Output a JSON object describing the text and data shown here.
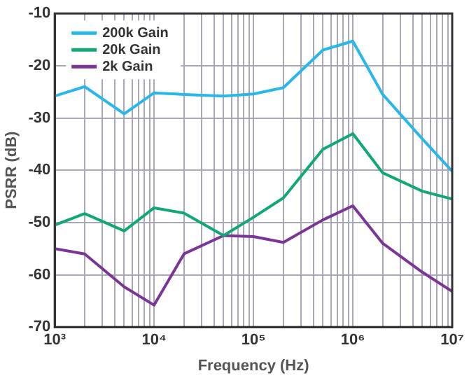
{
  "chart_data": {
    "type": "line",
    "xlabel": "Frequency (Hz)",
    "ylabel": "PSRR (dB)",
    "log": "x",
    "grid": true,
    "legend": "top left",
    "marker": "none",
    "line_style": "solid",
    "x": [
      1000,
      2000,
      5000,
      10000,
      20000,
      50000,
      100000,
      200000,
      500000,
      1000000,
      2000000,
      5000000,
      10000000
    ],
    "series": [
      {
        "name": "200k Gain",
        "color": "#29b6e8",
        "values": [
          -25.8,
          -24,
          -29.2,
          -25.2,
          -25.5,
          -25.8,
          -25.4,
          -24.2,
          -17,
          -15.3,
          -25.5,
          -34,
          -40.2
        ]
      },
      {
        "name": "20k Gain",
        "color": "#12a874",
        "values": [
          -50.5,
          -48.3,
          -51.6,
          -47.2,
          -48.2,
          -52.5,
          -49,
          -45.3,
          -36,
          -33,
          -40.5,
          -44,
          -45.5
        ]
      },
      {
        "name": "2k Gain",
        "color": "#7b3596",
        "values": [
          -55,
          -56,
          -62.3,
          -65.8,
          -56,
          -52.5,
          -52.7,
          -53.8,
          -49.5,
          -46.8,
          -54,
          -59.5,
          -63.2
        ]
      }
    ],
    "xlim": [
      1000,
      10000000
    ],
    "xticks": [
      {
        "value": 1000,
        "label": "10³"
      },
      {
        "value": 2000,
        "label": null
      },
      {
        "value": 3000,
        "label": null
      },
      {
        "value": 4000,
        "label": null
      },
      {
        "value": 5000,
        "label": null
      },
      {
        "value": 6000,
        "label": null
      },
      {
        "value": 7000,
        "label": null
      },
      {
        "value": 8000,
        "label": null
      },
      {
        "value": 9000,
        "label": null
      },
      {
        "value": 10000,
        "label": "10⁴"
      },
      {
        "value": 20000,
        "label": null
      },
      {
        "value": 30000,
        "label": null
      },
      {
        "value": 40000,
        "label": null
      },
      {
        "value": 50000,
        "label": null
      },
      {
        "value": 60000,
        "label": null
      },
      {
        "value": 70000,
        "label": null
      },
      {
        "value": 80000,
        "label": null
      },
      {
        "value": 90000,
        "label": null
      },
      {
        "value": 100000,
        "label": "10⁵"
      },
      {
        "value": 200000,
        "label": null
      },
      {
        "value": 300000,
        "label": null
      },
      {
        "value": 400000,
        "label": null
      },
      {
        "value": 500000,
        "label": null
      },
      {
        "value": 600000,
        "label": null
      },
      {
        "value": 700000,
        "label": null
      },
      {
        "value": 800000,
        "label": null
      },
      {
        "value": 900000,
        "label": null
      },
      {
        "value": 1000000,
        "label": "10⁶"
      },
      {
        "value": 2000000,
        "label": null
      },
      {
        "value": 3000000,
        "label": null
      },
      {
        "value": 4000000,
        "label": null
      },
      {
        "value": 5000000,
        "label": null
      },
      {
        "value": 6000000,
        "label": null
      },
      {
        "value": 7000000,
        "label": null
      },
      {
        "value": 8000000,
        "label": null
      },
      {
        "value": 9000000,
        "label": null
      },
      {
        "value": 10000000,
        "label": "10⁷"
      }
    ],
    "ylim": [
      -70,
      -10
    ],
    "yticks": [
      -70,
      -60,
      -50,
      -40,
      -30,
      -20,
      -10
    ]
  }
}
